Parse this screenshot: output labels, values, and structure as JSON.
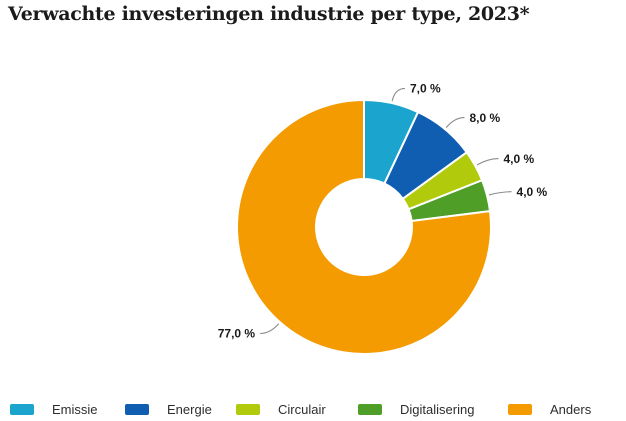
{
  "title": "Verwachte investeringen industrie per type, 2023*",
  "chart_data": {
    "type": "pie",
    "subtype": "donut",
    "title": "Verwachte investeringen industrie per type, 2023*",
    "categories": [
      "Emissie",
      "Energie",
      "Circulair",
      "Digitalisering",
      "Anders"
    ],
    "values": [
      7.0,
      8.0,
      4.0,
      4.0,
      77.0
    ],
    "value_labels": [
      "7,0 %",
      "8,0 %",
      "4,0 %",
      "4,0 %",
      "77,0 %"
    ],
    "colors": [
      "#1ba4cd",
      "#0f5eb2",
      "#b2ca0c",
      "#4f9e28",
      "#f39b00"
    ],
    "unit": "%",
    "start_angle_deg": 0,
    "direction": "clockwise",
    "legend_position": "bottom",
    "label_leader_color": "#8c8c8c"
  }
}
